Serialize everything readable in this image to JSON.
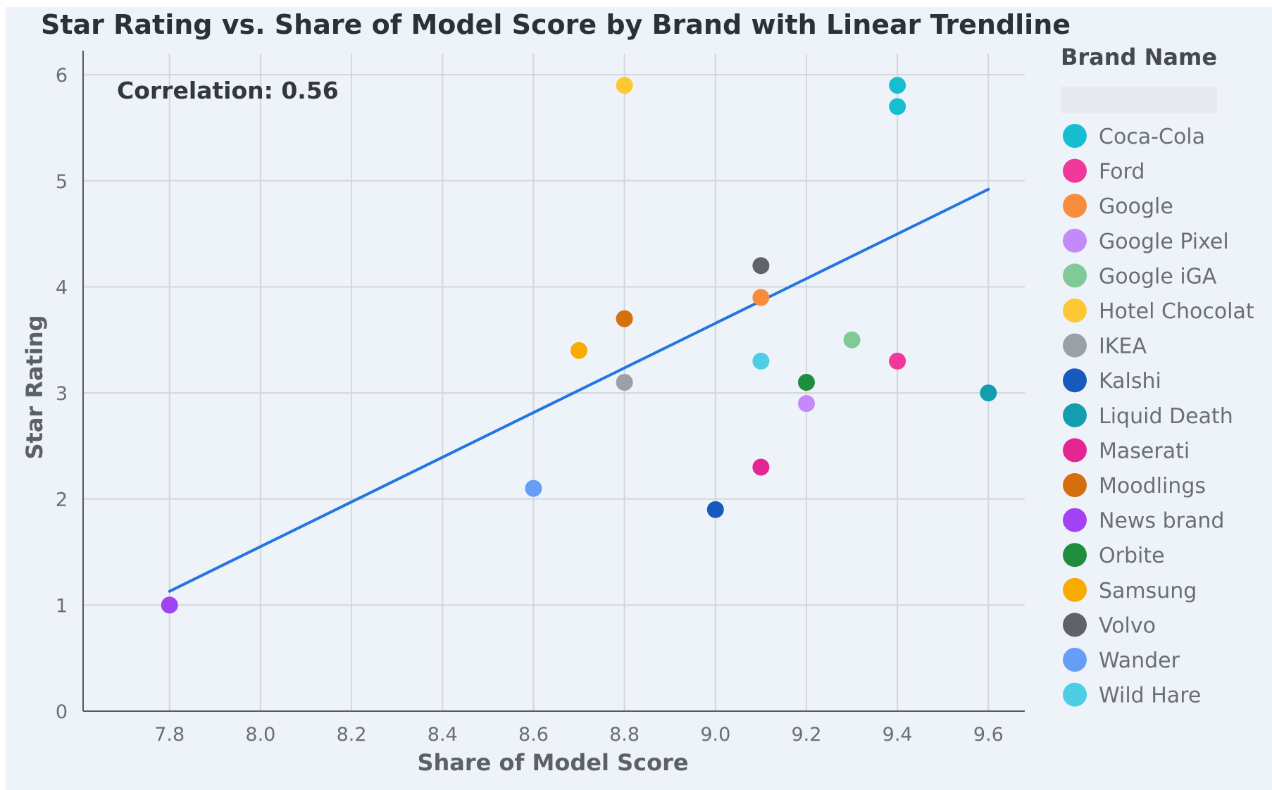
{
  "chart_data": {
    "type": "scatter",
    "title": "Star Rating vs. Share of Model Score by Brand with Linear Trendline",
    "xlabel": "Share of Model Score",
    "ylabel": "Star Rating",
    "xlim": [
      7.61,
      9.68
    ],
    "ylim": [
      0,
      6.2
    ],
    "xticks": [
      7.8,
      8.0,
      8.2,
      8.4,
      8.6,
      8.8,
      9.0,
      9.2,
      9.4,
      9.6
    ],
    "xtick_labels": [
      "7.8",
      "8.0",
      "8.2",
      "8.4",
      "8.6",
      "8.8",
      "9.0",
      "9.2",
      "9.4",
      "9.6"
    ],
    "yticks": [
      0,
      1,
      2,
      3,
      4,
      5,
      6
    ],
    "ytick_labels": [
      "0",
      "1",
      "2",
      "3",
      "4",
      "5",
      "6"
    ],
    "grid": true,
    "annotation": "Correlation: 0.56",
    "legend_title": "Brand Name",
    "legend_position": "right",
    "series": [
      {
        "name": "Coca-Cola",
        "color": "#17becf",
        "points": [
          [
            9.4,
            5.9
          ],
          [
            9.4,
            5.7
          ]
        ]
      },
      {
        "name": "Ford",
        "color": "#f0379b",
        "points": [
          [
            9.4,
            3.3
          ]
        ]
      },
      {
        "name": "Google",
        "color": "#f98b3c",
        "points": [
          [
            9.1,
            3.9
          ]
        ]
      },
      {
        "name": "Google Pixel",
        "color": "#c58af9",
        "points": [
          [
            9.2,
            2.9
          ]
        ]
      },
      {
        "name": "Google iGA",
        "color": "#81c995",
        "points": [
          [
            9.3,
            3.5
          ]
        ]
      },
      {
        "name": "Hotel Chocolat",
        "color": "#fcc934",
        "points": [
          [
            8.8,
            5.9
          ]
        ]
      },
      {
        "name": "IKEA",
        "color": "#9aa0a6",
        "points": [
          [
            8.8,
            3.1
          ]
        ]
      },
      {
        "name": "Kalshi",
        "color": "#185abc",
        "points": [
          [
            9.0,
            1.9
          ]
        ]
      },
      {
        "name": "Liquid Death",
        "color": "#129eaf",
        "points": [
          [
            9.6,
            3.0
          ]
        ]
      },
      {
        "name": "Maserati",
        "color": "#e52592",
        "points": [
          [
            9.1,
            2.3
          ]
        ]
      },
      {
        "name": "Moodlings",
        "color": "#d56e0c",
        "points": [
          [
            8.8,
            3.7
          ]
        ]
      },
      {
        "name": "News brand",
        "color": "#a142f4",
        "points": [
          [
            7.8,
            1.0
          ]
        ]
      },
      {
        "name": "Orbite",
        "color": "#1e8e3e",
        "points": [
          [
            9.2,
            3.1
          ]
        ]
      },
      {
        "name": "Samsung",
        "color": "#f9ab00",
        "points": [
          [
            8.7,
            3.4
          ]
        ]
      },
      {
        "name": "Volvo",
        "color": "#5f6368",
        "points": [
          [
            9.1,
            4.2
          ]
        ]
      },
      {
        "name": "Wander",
        "color": "#669df6",
        "points": [
          [
            8.6,
            2.1
          ]
        ]
      },
      {
        "name": "Wild Hare",
        "color": "#4ecde6",
        "points": [
          [
            9.1,
            3.3
          ]
        ]
      }
    ],
    "trendline": {
      "name": "Linear Trendline",
      "color": "#2575e0",
      "x": [
        7.8,
        9.6
      ],
      "y": [
        1.13,
        4.92
      ]
    }
  }
}
